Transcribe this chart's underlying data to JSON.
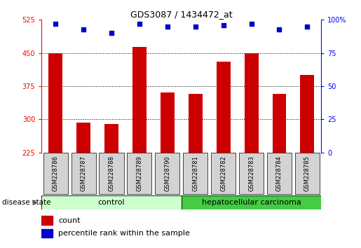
{
  "title": "GDS3087 / 1434472_at",
  "samples": [
    "GSM228786",
    "GSM228787",
    "GSM228788",
    "GSM228789",
    "GSM228790",
    "GSM228781",
    "GSM228782",
    "GSM228783",
    "GSM228784",
    "GSM228785"
  ],
  "counts": [
    450,
    293,
    290,
    463,
    360,
    358,
    430,
    450,
    358,
    400
  ],
  "percentiles": [
    97,
    93,
    90,
    97,
    95,
    95,
    96,
    97,
    93,
    95
  ],
  "ylim_left": [
    225,
    525
  ],
  "ylim_right": [
    0,
    100
  ],
  "yticks_left": [
    225,
    300,
    375,
    450,
    525
  ],
  "yticks_right": [
    0,
    25,
    50,
    75,
    100
  ],
  "bar_color": "#cc0000",
  "dot_color": "#0000cc",
  "control_light": "#ccffcc",
  "carcinoma_dark": "#44cc44",
  "tick_label_bg": "#d3d3d3",
  "disease_state_label": "disease state",
  "control_label": "control",
  "carcinoma_label": "hepatocellular carcinoma",
  "legend_count": "count",
  "legend_percentile": "percentile rank within the sample",
  "bar_width": 0.5,
  "grid_lines": [
    300,
    375,
    450
  ],
  "n_control": 5,
  "n_total": 10
}
